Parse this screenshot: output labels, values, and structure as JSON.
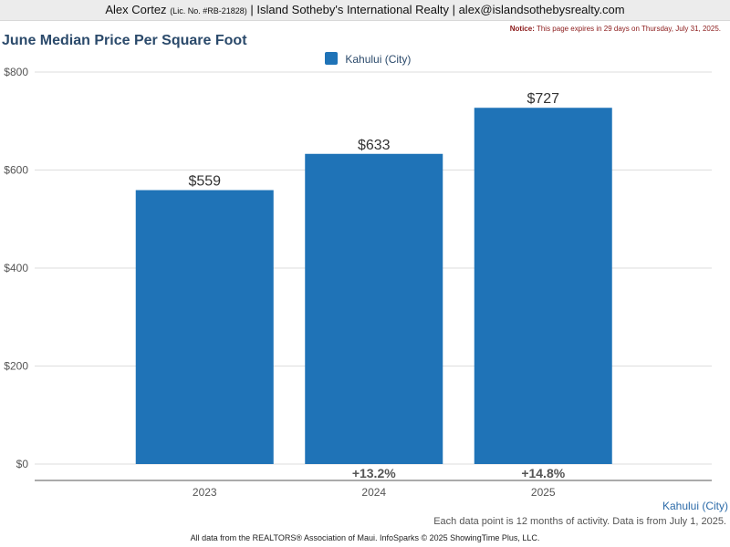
{
  "header": {
    "agent_name": "Alex Cortez",
    "license": "(Lic. No. #RB-21828)",
    "brokerage": "| Island Sotheby's International Realty |",
    "email": "alex@islandsothebysrealty.com"
  },
  "notice": {
    "label": "Notice:",
    "text": "This page expires in 29 days on Thursday, July 31, 2025."
  },
  "chart_data": {
    "type": "bar",
    "title": "June Median Price Per Square Foot",
    "categories": [
      "2023",
      "2024",
      "2025"
    ],
    "series": [
      {
        "name": "Kahului (City)",
        "values": [
          559,
          633,
          727
        ]
      }
    ],
    "value_labels": [
      "$559",
      "$633",
      "$727"
    ],
    "change_labels": [
      "",
      "+13.2%",
      "+14.8%"
    ],
    "y_ticks": [
      0,
      200,
      400,
      600,
      800
    ],
    "y_tick_labels": [
      "$0",
      "$200",
      "$400",
      "$600",
      "$800"
    ],
    "ylim": [
      0,
      800
    ],
    "grid": true,
    "legend_position": "top-center",
    "bar_color": "#1f73b7"
  },
  "series_label": "Kahului (City)",
  "data_note": "Each data point is 12 months of activity. Data is from July 1, 2025.",
  "footer_note": "All data from the REALTORS® Association of Maui. InfoSparks © 2025 ShowingTime Plus, LLC."
}
